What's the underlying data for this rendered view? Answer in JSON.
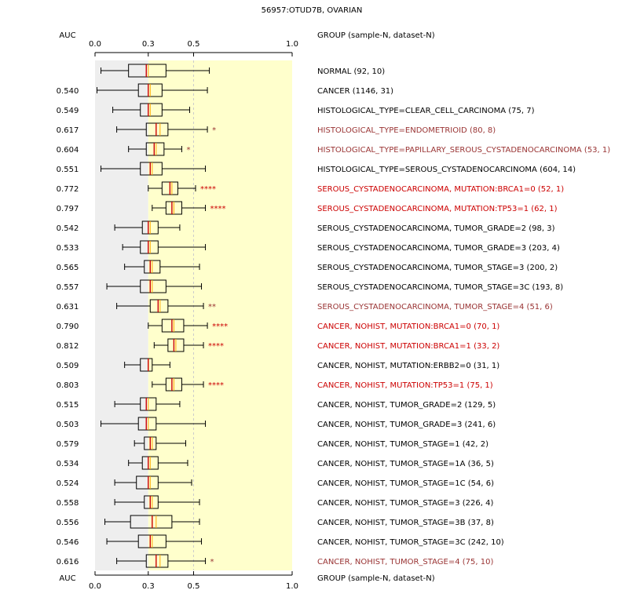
{
  "chart_data": {
    "type": "boxplot",
    "title": "56957:OTUD7B, OVARIAN",
    "auc_header": "AUC",
    "group_header": "GROUP (sample-N, dataset-N)",
    "xlim": [
      0.0,
      1.0
    ],
    "x_ticks": [
      "0.0",
      "0.3",
      "0.5",
      "1.0"
    ],
    "x_tick_values": [
      0.0,
      0.27,
      0.5,
      1.0
    ],
    "reference_line": 0.5,
    "colors": {
      "normal": "#000000",
      "significant": "#cc0000",
      "weak": "#993333",
      "median": "#cc0000",
      "mean": "#ffaa00",
      "bg_left": "#eeeeee",
      "bg_right": "#ffffcc"
    },
    "rows": [
      {
        "auc": "",
        "label": "NORMAL (92, 10)",
        "stars": "",
        "color": "normal",
        "whisker_low": 0.03,
        "q1": 0.17,
        "median": 0.26,
        "mean": 0.27,
        "q3": 0.36,
        "whisker_high": 0.58
      },
      {
        "auc": "0.540",
        "label": "CANCER (1146, 31)",
        "stars": "",
        "color": "normal",
        "whisker_low": 0.01,
        "q1": 0.22,
        "median": 0.27,
        "mean": 0.28,
        "q3": 0.34,
        "whisker_high": 0.57
      },
      {
        "auc": "0.549",
        "label": "HISTOLOGICAL_TYPE=CLEAR_CELL_CARCINOMA (75, 7)",
        "stars": "",
        "color": "normal",
        "whisker_low": 0.09,
        "q1": 0.23,
        "median": 0.27,
        "mean": 0.28,
        "q3": 0.34,
        "whisker_high": 0.48
      },
      {
        "auc": "0.617",
        "label": "HISTOLOGICAL_TYPE=ENDOMETRIOID (80, 8)",
        "stars": "*",
        "color": "weak",
        "whisker_low": 0.11,
        "q1": 0.26,
        "median": 0.31,
        "mean": 0.33,
        "q3": 0.37,
        "whisker_high": 0.57
      },
      {
        "auc": "0.604",
        "label": "HISTOLOGICAL_TYPE=PAPILLARY_SEROUS_CYSTADENOCARCINOMA (53, 1)",
        "stars": "*",
        "color": "weak",
        "whisker_low": 0.17,
        "q1": 0.26,
        "median": 0.3,
        "mean": 0.31,
        "q3": 0.35,
        "whisker_high": 0.44
      },
      {
        "auc": "0.551",
        "label": "HISTOLOGICAL_TYPE=SEROUS_CYSTADENOCARCINOMA (604, 14)",
        "stars": "",
        "color": "normal",
        "whisker_low": 0.03,
        "q1": 0.23,
        "median": 0.28,
        "mean": 0.29,
        "q3": 0.34,
        "whisker_high": 0.56
      },
      {
        "auc": "0.772",
        "label": "SEROUS_CYSTADENOCARCINOMA, MUTATION:BRCA1=0 (52, 1)",
        "stars": "****",
        "color": "significant",
        "whisker_low": 0.27,
        "q1": 0.34,
        "median": 0.38,
        "mean": 0.39,
        "q3": 0.42,
        "whisker_high": 0.51
      },
      {
        "auc": "0.797",
        "label": "SEROUS_CYSTADENOCARCINOMA, MUTATION:TP53=1 (62, 1)",
        "stars": "****",
        "color": "significant",
        "whisker_low": 0.29,
        "q1": 0.36,
        "median": 0.39,
        "mean": 0.4,
        "q3": 0.44,
        "whisker_high": 0.56
      },
      {
        "auc": "0.542",
        "label": "SEROUS_CYSTADENOCARCINOMA, TUMOR_GRADE=2 (98, 3)",
        "stars": "",
        "color": "normal",
        "whisker_low": 0.1,
        "q1": 0.24,
        "median": 0.27,
        "mean": 0.28,
        "q3": 0.32,
        "whisker_high": 0.43
      },
      {
        "auc": "0.533",
        "label": "SEROUS_CYSTADENOCARCINOMA, TUMOR_GRADE=3 (203, 4)",
        "stars": "",
        "color": "normal",
        "whisker_low": 0.14,
        "q1": 0.23,
        "median": 0.27,
        "mean": 0.28,
        "q3": 0.32,
        "whisker_high": 0.56
      },
      {
        "auc": "0.565",
        "label": "SEROUS_CYSTADENOCARCINOMA, TUMOR_STAGE=3 (200, 2)",
        "stars": "",
        "color": "normal",
        "whisker_low": 0.15,
        "q1": 0.25,
        "median": 0.28,
        "mean": 0.29,
        "q3": 0.33,
        "whisker_high": 0.53
      },
      {
        "auc": "0.557",
        "label": "SEROUS_CYSTADENOCARCINOMA, TUMOR_STAGE=3C (193, 8)",
        "stars": "",
        "color": "normal",
        "whisker_low": 0.06,
        "q1": 0.23,
        "median": 0.28,
        "mean": 0.29,
        "q3": 0.36,
        "whisker_high": 0.54
      },
      {
        "auc": "0.631",
        "label": "SEROUS_CYSTADENOCARCINOMA, TUMOR_STAGE=4 (51, 6)",
        "stars": "**",
        "color": "weak",
        "whisker_low": 0.11,
        "q1": 0.28,
        "median": 0.32,
        "mean": 0.33,
        "q3": 0.37,
        "whisker_high": 0.55
      },
      {
        "auc": "0.790",
        "label": "CANCER, NOHIST, MUTATION:BRCA1=0 (70, 1)",
        "stars": "****",
        "color": "significant",
        "whisker_low": 0.27,
        "q1": 0.34,
        "median": 0.39,
        "mean": 0.4,
        "q3": 0.45,
        "whisker_high": 0.57
      },
      {
        "auc": "0.812",
        "label": "CANCER, NOHIST, MUTATION:BRCA1=1 (33, 2)",
        "stars": "****",
        "color": "significant",
        "whisker_low": 0.3,
        "q1": 0.37,
        "median": 0.4,
        "mean": 0.41,
        "q3": 0.45,
        "whisker_high": 0.55
      },
      {
        "auc": "0.509",
        "label": "CANCER, NOHIST, MUTATION:ERBB2=0 (31, 1)",
        "stars": "",
        "color": "normal",
        "whisker_low": 0.15,
        "q1": 0.23,
        "median": 0.27,
        "mean": 0.27,
        "q3": 0.29,
        "whisker_high": 0.38
      },
      {
        "auc": "0.803",
        "label": "CANCER, NOHIST, MUTATION:TP53=1 (75, 1)",
        "stars": "****",
        "color": "significant",
        "whisker_low": 0.29,
        "q1": 0.36,
        "median": 0.39,
        "mean": 0.4,
        "q3": 0.44,
        "whisker_high": 0.55
      },
      {
        "auc": "0.515",
        "label": "CANCER, NOHIST, TUMOR_GRADE=2 (129, 5)",
        "stars": "",
        "color": "normal",
        "whisker_low": 0.1,
        "q1": 0.23,
        "median": 0.26,
        "mean": 0.27,
        "q3": 0.31,
        "whisker_high": 0.43
      },
      {
        "auc": "0.503",
        "label": "CANCER, NOHIST, TUMOR_GRADE=3 (241, 6)",
        "stars": "",
        "color": "normal",
        "whisker_low": 0.03,
        "q1": 0.22,
        "median": 0.26,
        "mean": 0.27,
        "q3": 0.31,
        "whisker_high": 0.56
      },
      {
        "auc": "0.579",
        "label": "CANCER, NOHIST, TUMOR_STAGE=1 (42, 2)",
        "stars": "",
        "color": "normal",
        "whisker_low": 0.2,
        "q1": 0.25,
        "median": 0.28,
        "mean": 0.29,
        "q3": 0.31,
        "whisker_high": 0.46
      },
      {
        "auc": "0.534",
        "label": "CANCER, NOHIST, TUMOR_STAGE=1A (36, 5)",
        "stars": "",
        "color": "normal",
        "whisker_low": 0.17,
        "q1": 0.24,
        "median": 0.27,
        "mean": 0.28,
        "q3": 0.32,
        "whisker_high": 0.47
      },
      {
        "auc": "0.524",
        "label": "CANCER, NOHIST, TUMOR_STAGE=1C (54, 6)",
        "stars": "",
        "color": "normal",
        "whisker_low": 0.1,
        "q1": 0.21,
        "median": 0.27,
        "mean": 0.28,
        "q3": 0.32,
        "whisker_high": 0.49
      },
      {
        "auc": "0.558",
        "label": "CANCER, NOHIST, TUMOR_STAGE=3 (226, 4)",
        "stars": "",
        "color": "normal",
        "whisker_low": 0.1,
        "q1": 0.25,
        "median": 0.28,
        "mean": 0.29,
        "q3": 0.32,
        "whisker_high": 0.53
      },
      {
        "auc": "0.556",
        "label": "CANCER, NOHIST, TUMOR_STAGE=3B (37, 8)",
        "stars": "",
        "color": "normal",
        "whisker_low": 0.05,
        "q1": 0.18,
        "median": 0.29,
        "mean": 0.31,
        "q3": 0.39,
        "whisker_high": 0.53
      },
      {
        "auc": "0.546",
        "label": "CANCER, NOHIST, TUMOR_STAGE=3C (242, 10)",
        "stars": "",
        "color": "normal",
        "whisker_low": 0.06,
        "q1": 0.22,
        "median": 0.28,
        "mean": 0.29,
        "q3": 0.36,
        "whisker_high": 0.54
      },
      {
        "auc": "0.616",
        "label": "CANCER, NOHIST, TUMOR_STAGE=4 (75, 10)",
        "stars": "*",
        "color": "weak",
        "whisker_low": 0.11,
        "q1": 0.26,
        "median": 0.31,
        "mean": 0.33,
        "q3": 0.37,
        "whisker_high": 0.56
      }
    ]
  }
}
